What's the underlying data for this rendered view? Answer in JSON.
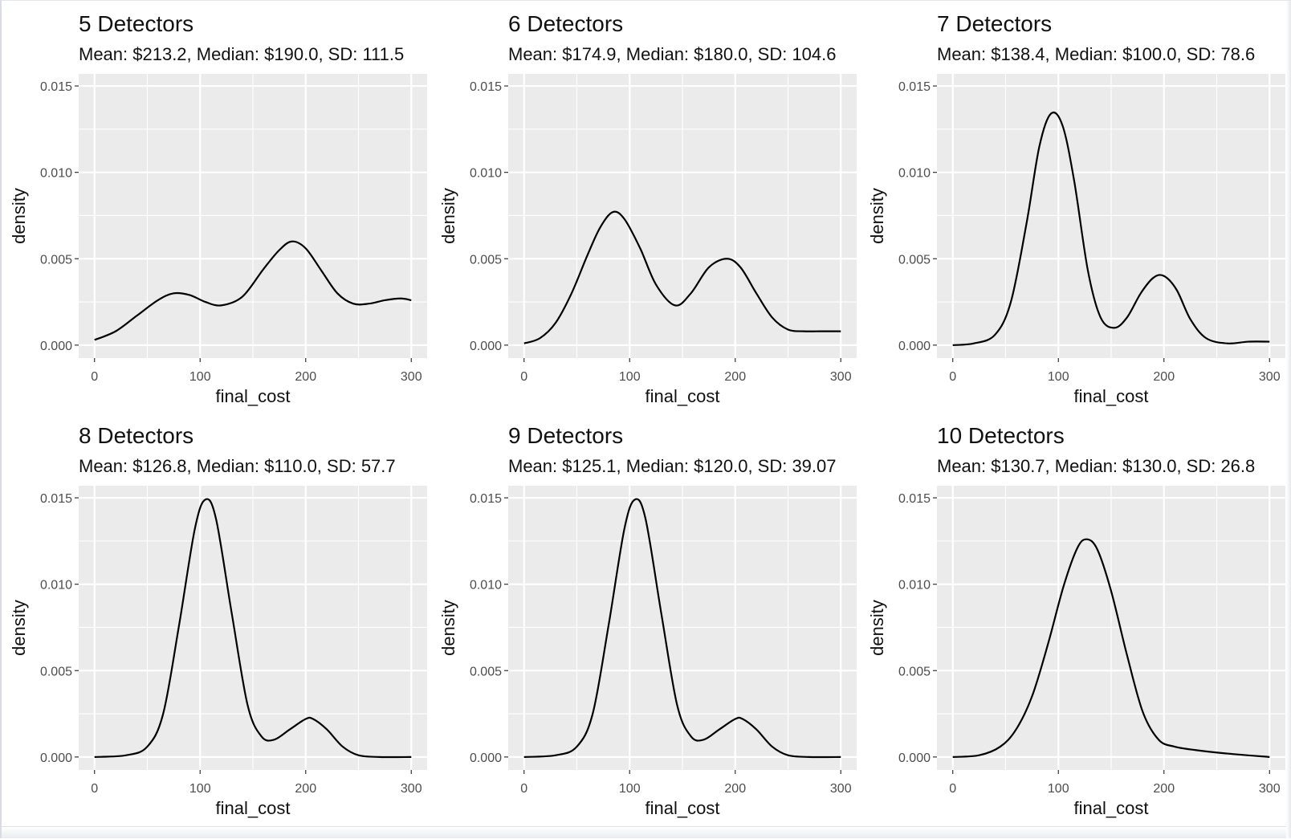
{
  "chart_data": [
    {
      "type": "line",
      "title": "5 Detectors",
      "subtitle": "Mean: $213.2, Median: $190.0, SD: 111.5",
      "xlabel": "final_cost",
      "ylabel": "density",
      "xlim": [
        -15,
        315
      ],
      "ylim": [
        -0.00075,
        0.0157
      ],
      "x_ticks": [
        0,
        100,
        200,
        300
      ],
      "y_ticks": [
        "0.000",
        "0.005",
        "0.010",
        "0.015"
      ],
      "grid": true,
      "series": [
        {
          "line_color": "#000000",
          "x": [
            0,
            20,
            40,
            60,
            75,
            90,
            105,
            120,
            140,
            160,
            175,
            187,
            200,
            215,
            230,
            245,
            260,
            275,
            290,
            300
          ],
          "y": [
            0.0003,
            0.0008,
            0.0017,
            0.0026,
            0.003,
            0.0029,
            0.0025,
            0.0023,
            0.0028,
            0.0044,
            0.0055,
            0.006,
            0.0056,
            0.0043,
            0.003,
            0.0024,
            0.0024,
            0.0026,
            0.0027,
            0.0026
          ]
        }
      ]
    },
    {
      "type": "line",
      "title": "6 Detectors",
      "subtitle": "Mean: $174.9, Median: $180.0, SD: 104.6",
      "xlabel": "final_cost",
      "ylabel": "density",
      "xlim": [
        -15,
        315
      ],
      "ylim": [
        -0.00075,
        0.0157
      ],
      "x_ticks": [
        0,
        100,
        200,
        300
      ],
      "y_ticks": [
        "0.000",
        "0.005",
        "0.010",
        "0.015"
      ],
      "grid": true,
      "series": [
        {
          "line_color": "#000000",
          "x": [
            0,
            15,
            30,
            45,
            60,
            72,
            84,
            95,
            110,
            125,
            143,
            158,
            175,
            192,
            205,
            220,
            235,
            250,
            265,
            280,
            300
          ],
          "y": [
            0.0001,
            0.0004,
            0.0013,
            0.003,
            0.0052,
            0.0068,
            0.0077,
            0.0073,
            0.0056,
            0.0035,
            0.0023,
            0.003,
            0.0045,
            0.005,
            0.0045,
            0.003,
            0.0016,
            0.0009,
            0.0008,
            0.0008,
            0.0008
          ]
        }
      ]
    },
    {
      "type": "line",
      "title": "7 Detectors",
      "subtitle": "Mean: $138.4, Median: $100.0, SD: 78.6",
      "xlabel": "final_cost",
      "ylabel": "density",
      "xlim": [
        -15,
        315
      ],
      "ylim": [
        -0.00075,
        0.0157
      ],
      "x_ticks": [
        0,
        100,
        200,
        300
      ],
      "y_ticks": [
        "0.000",
        "0.005",
        "0.010",
        "0.015"
      ],
      "grid": true,
      "series": [
        {
          "line_color": "#000000",
          "x": [
            0,
            20,
            40,
            55,
            70,
            82,
            93,
            104,
            115,
            128,
            140,
            153,
            165,
            178,
            190,
            200,
            212,
            225,
            240,
            260,
            280,
            300
          ],
          "y": [
            0.0,
            0.0001,
            0.0006,
            0.0025,
            0.0071,
            0.0115,
            0.0134,
            0.0127,
            0.0095,
            0.0043,
            0.0016,
            0.001,
            0.0016,
            0.003,
            0.0039,
            0.004,
            0.0032,
            0.0015,
            0.0004,
            0.0001,
            0.0002,
            0.0002
          ]
        }
      ]
    },
    {
      "type": "line",
      "title": "8 Detectors",
      "subtitle": "Mean: $126.8, Median: $110.0, SD: 57.7",
      "xlabel": "final_cost",
      "ylabel": "density",
      "xlim": [
        -15,
        315
      ],
      "ylim": [
        -0.00075,
        0.0157
      ],
      "x_ticks": [
        0,
        100,
        200,
        300
      ],
      "y_ticks": [
        "0.000",
        "0.005",
        "0.010",
        "0.015"
      ],
      "grid": true,
      "series": [
        {
          "line_color": "#000000",
          "x": [
            0,
            30,
            50,
            65,
            80,
            95,
            105,
            115,
            130,
            145,
            158,
            170,
            185,
            200,
            207,
            220,
            235,
            250,
            270,
            300
          ],
          "y": [
            0.0,
            0.0001,
            0.0006,
            0.0025,
            0.0076,
            0.0132,
            0.0149,
            0.0138,
            0.0083,
            0.003,
            0.0012,
            0.001,
            0.0016,
            0.0022,
            0.0022,
            0.0016,
            0.0006,
            0.0001,
            0.0,
            0.0
          ]
        }
      ]
    },
    {
      "type": "line",
      "title": "9 Detectors",
      "subtitle": "Mean: $125.1, Median: $120.0, SD: 39.07",
      "xlabel": "final_cost",
      "ylabel": "density",
      "xlim": [
        -15,
        315
      ],
      "ylim": [
        -0.00075,
        0.0157
      ],
      "x_ticks": [
        0,
        100,
        200,
        300
      ],
      "y_ticks": [
        "0.000",
        "0.005",
        "0.010",
        "0.015"
      ],
      "grid": true,
      "series": [
        {
          "line_color": "#000000",
          "x": [
            0,
            30,
            50,
            65,
            80,
            95,
            105,
            115,
            130,
            145,
            158,
            170,
            185,
            200,
            207,
            220,
            235,
            250,
            270,
            300
          ],
          "y": [
            0.0,
            0.0001,
            0.0006,
            0.0025,
            0.0076,
            0.0132,
            0.0149,
            0.0138,
            0.0083,
            0.003,
            0.0012,
            0.001,
            0.0016,
            0.0022,
            0.0022,
            0.0016,
            0.0006,
            0.0001,
            0.0,
            0.0
          ]
        }
      ]
    },
    {
      "type": "line",
      "title": "10 Detectors",
      "subtitle": "Mean: $130.7, Median: $130.0, SD: 26.8",
      "xlabel": "final_cost",
      "ylabel": "density",
      "xlim": [
        -15,
        315
      ],
      "ylim": [
        -0.00075,
        0.0157
      ],
      "x_ticks": [
        0,
        100,
        200,
        300
      ],
      "y_ticks": [
        "0.000",
        "0.005",
        "0.010",
        "0.015"
      ],
      "grid": true,
      "series": [
        {
          "line_color": "#000000",
          "x": [
            0,
            25,
            45,
            60,
            75,
            90,
            105,
            118,
            127,
            137,
            150,
            165,
            180,
            195,
            210,
            230,
            260,
            300
          ],
          "y": [
            0.0,
            0.0001,
            0.0006,
            0.0016,
            0.0035,
            0.0065,
            0.0099,
            0.0121,
            0.0126,
            0.012,
            0.0096,
            0.0059,
            0.0026,
            0.001,
            0.0006,
            0.0004,
            0.0002,
            0.0
          ]
        }
      ]
    }
  ],
  "colors": {
    "panel_background": "#ebebeb",
    "gridline": "#ffffff",
    "tick_text": "#4d4d4d",
    "text": "#111111",
    "line": "#000000"
  }
}
